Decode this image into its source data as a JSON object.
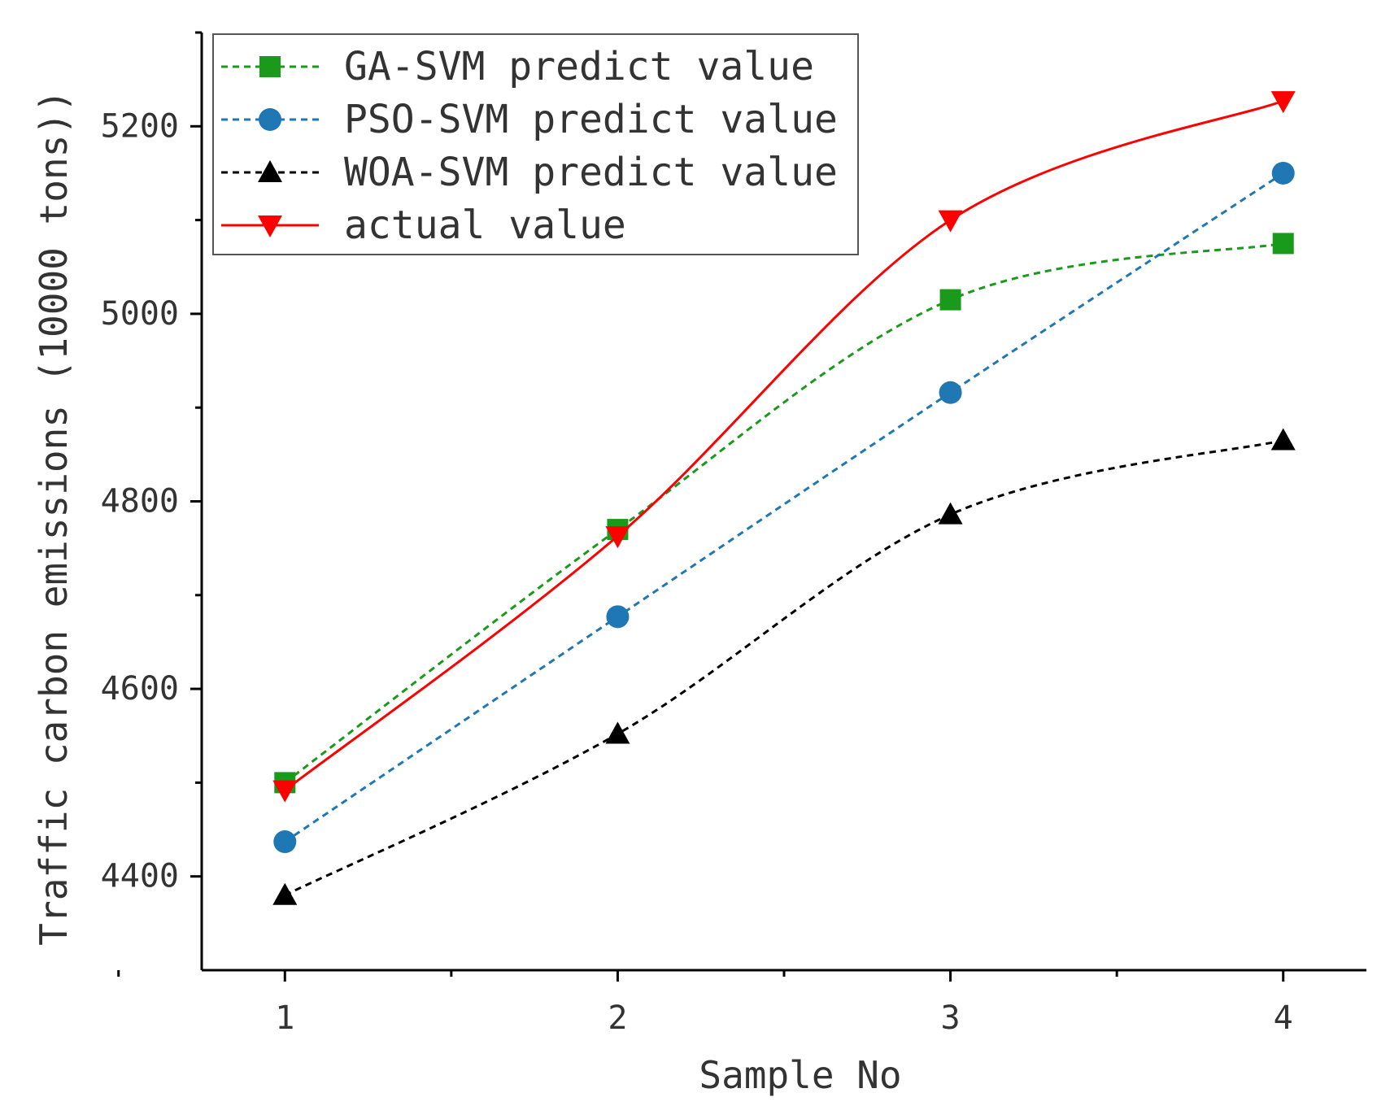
{
  "chart_data": {
    "type": "line",
    "title": "",
    "xlabel": "Sample No",
    "ylabel": "Traffic carbon emissions (10000 tons))",
    "x": [
      1,
      2,
      3,
      4
    ],
    "xticks": [
      1,
      2,
      3,
      4
    ],
    "xtick_labels": [
      "1",
      "2",
      "3",
      "4"
    ],
    "xlim": [
      0.75,
      4.25
    ],
    "yticks": [
      4400,
      4600,
      4800,
      5000,
      5200
    ],
    "ytick_labels": [
      "4400",
      "4600",
      "4800",
      "5000",
      "5200"
    ],
    "ylim": [
      4300,
      5300
    ],
    "grid": false,
    "legend_position": "top-left",
    "series": [
      {
        "name": "GA-SVM predict value",
        "values": [
          4500,
          4770,
          5015,
          5075
        ],
        "color": "#1a9a1a",
        "marker": "square",
        "line": "dashed"
      },
      {
        "name": "PSO-SVM predict value",
        "values": [
          4437,
          4677,
          4916,
          5150
        ],
        "color": "#1f77b4",
        "marker": "circle",
        "line": "dashed"
      },
      {
        "name": "WOA-SVM predict value",
        "values": [
          4380,
          4552,
          4786,
          4865
        ],
        "color": "#000000",
        "marker": "triangle-up",
        "line": "dashed"
      },
      {
        "name": "actual value",
        "values": [
          4492,
          4763,
          5100,
          5227
        ],
        "color": "#ff0000",
        "marker": "triangle-down",
        "line": "solid"
      }
    ]
  }
}
